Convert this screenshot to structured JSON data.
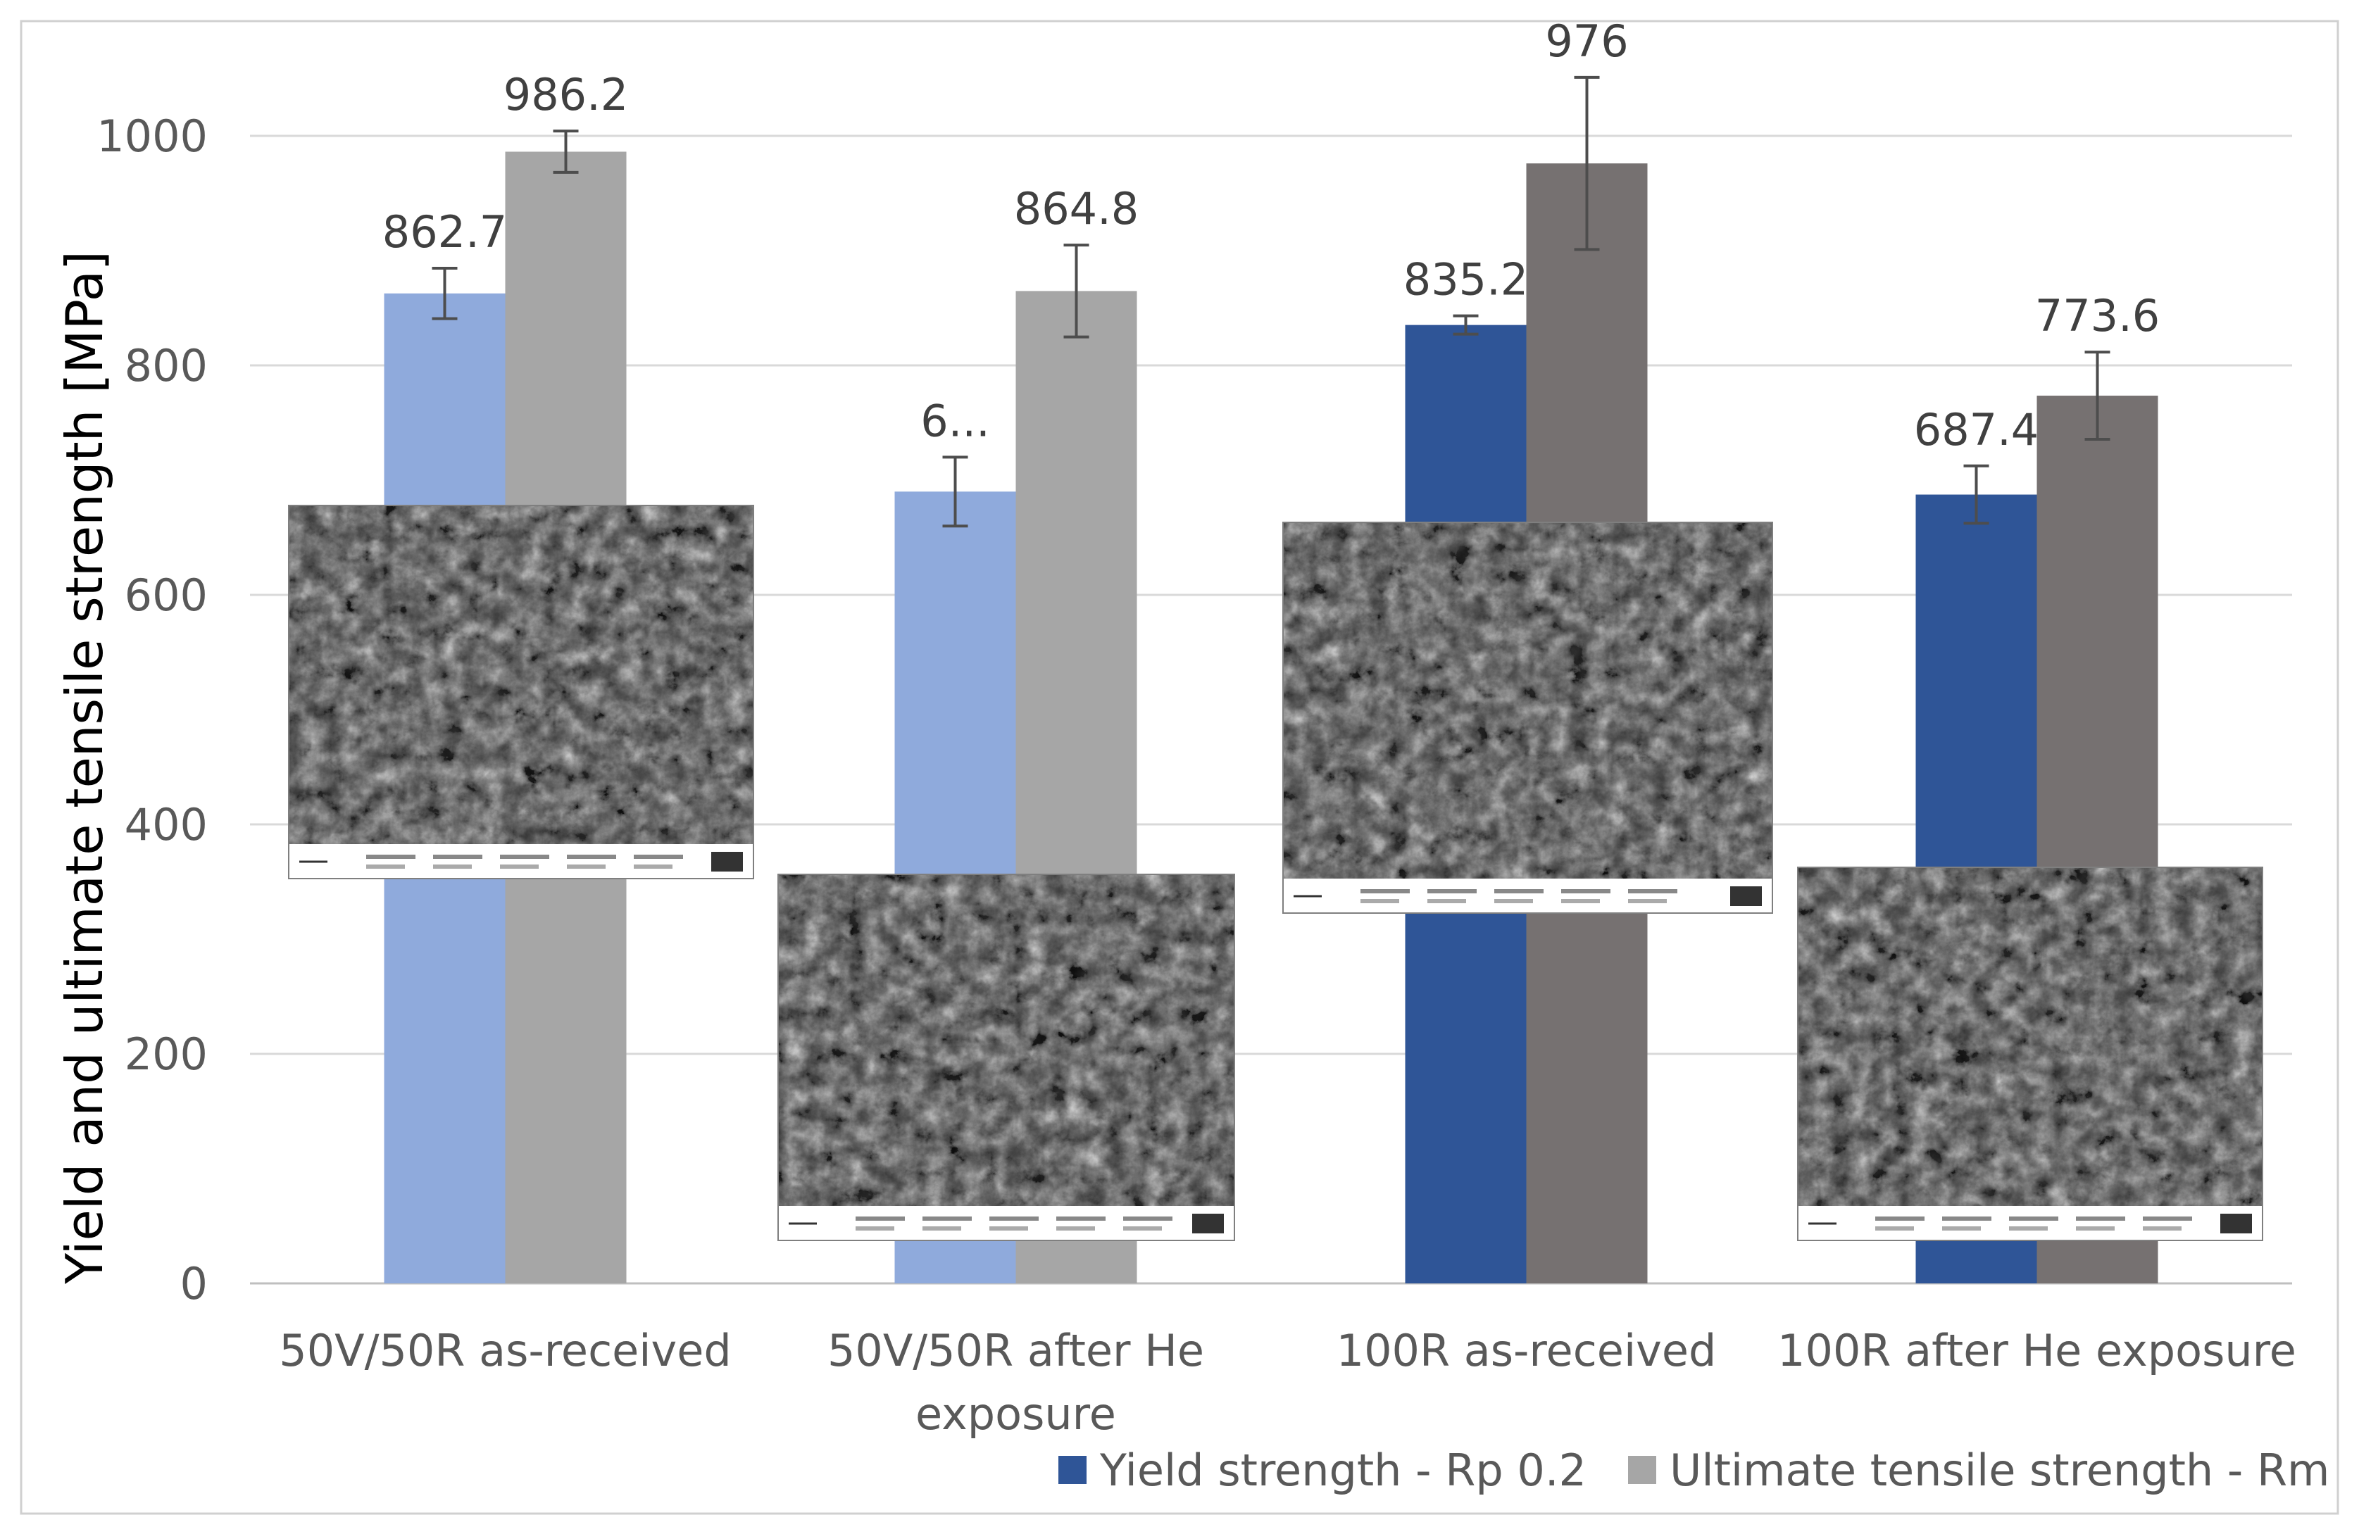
{
  "chart_data": {
    "type": "bar",
    "ylabel": "Yield and ultimate tensile strength [MPa]",
    "xlabel": "",
    "ylim": [
      0,
      1000
    ],
    "yticks": [
      0,
      200,
      400,
      600,
      800,
      1000
    ],
    "grid": true,
    "legend_position": "bottom-right",
    "categories": [
      [
        "50V/50R as-received"
      ],
      [
        "50V/50R after He",
        "exposure"
      ],
      [
        "100R as-received"
      ],
      [
        "100R after He exposure"
      ]
    ],
    "series": [
      {
        "name": "Yield strength - Rp 0.2",
        "legend_color": "#2f5597",
        "colors": [
          "#8faadc",
          "#8faadc",
          "#2f5597",
          "#2f5597"
        ],
        "values": [
          862.7,
          690,
          835.2,
          687.4
        ],
        "labels": [
          "862.7",
          "6...",
          "835.2",
          "687.4"
        ],
        "error": [
          22,
          30,
          8,
          25
        ]
      },
      {
        "name": "Ultimate tensile strength - Rm",
        "legend_color": "#a6a6a6",
        "colors": [
          "#a6a6a6",
          "#a6a6a6",
          "#767171",
          "#767171"
        ],
        "values": [
          986.2,
          864.8,
          976,
          773.6
        ],
        "labels": [
          "986.2",
          "864.8",
          "976",
          "773.6"
        ],
        "error": [
          18,
          40,
          75,
          38
        ]
      }
    ],
    "insets": [
      {
        "name": "sem-micrograph-50v50r-as-received",
        "caption": "SEM fracture surface"
      },
      {
        "name": "sem-micrograph-50v50r-after-he",
        "caption": "SEM fracture surface"
      },
      {
        "name": "sem-micrograph-100r-as-received",
        "caption": "SEM fracture surface"
      },
      {
        "name": "sem-micrograph-100r-after-he",
        "caption": "SEM fracture surface"
      }
    ]
  }
}
